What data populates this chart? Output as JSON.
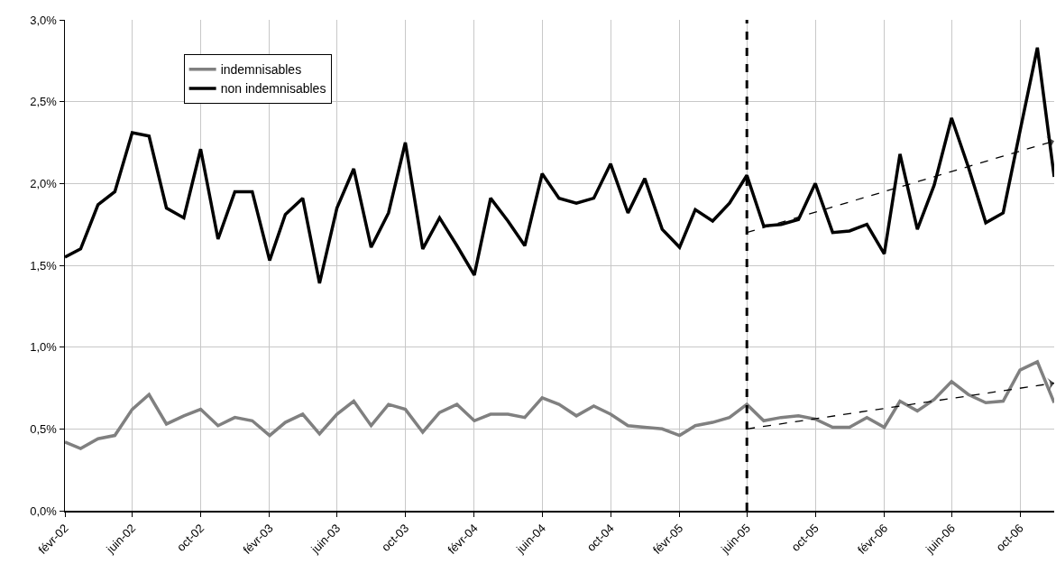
{
  "chart_data": {
    "type": "line",
    "x": [
      "2002-02",
      "2002-03",
      "2002-04",
      "2002-05",
      "2002-06",
      "2002-07",
      "2002-08",
      "2002-09",
      "2002-10",
      "2002-11",
      "2002-12",
      "2003-01",
      "2003-02",
      "2003-03",
      "2003-04",
      "2003-05",
      "2003-06",
      "2003-07",
      "2003-08",
      "2003-09",
      "2003-10",
      "2003-11",
      "2003-12",
      "2004-01",
      "2004-02",
      "2004-03",
      "2004-04",
      "2004-05",
      "2004-06",
      "2004-07",
      "2004-08",
      "2004-09",
      "2004-10",
      "2004-11",
      "2004-12",
      "2005-01",
      "2005-02",
      "2005-03",
      "2005-04",
      "2005-05",
      "2005-06",
      "2005-07",
      "2005-08",
      "2005-09",
      "2005-10",
      "2005-11",
      "2005-12",
      "2006-01",
      "2006-02",
      "2006-03",
      "2006-04",
      "2006-05",
      "2006-06",
      "2006-07",
      "2006-08",
      "2006-09",
      "2006-10",
      "2006-11",
      "2006-12"
    ],
    "series": [
      {
        "name": "indemnisables",
        "color": "#808080",
        "values": [
          0.42,
          0.38,
          0.44,
          0.46,
          0.62,
          0.71,
          0.53,
          0.58,
          0.62,
          0.52,
          0.57,
          0.55,
          0.46,
          0.54,
          0.59,
          0.47,
          0.59,
          0.67,
          0.52,
          0.65,
          0.62,
          0.48,
          0.6,
          0.65,
          0.55,
          0.59,
          0.59,
          0.57,
          0.69,
          0.65,
          0.58,
          0.64,
          0.59,
          0.52,
          0.51,
          0.5,
          0.46,
          0.52,
          0.54,
          0.57,
          0.65,
          0.55,
          0.57,
          0.58,
          0.56,
          0.51,
          0.51,
          0.57,
          0.51,
          0.67,
          0.61,
          0.68,
          0.79,
          0.71,
          0.66,
          0.67,
          0.86,
          0.91,
          0.66
        ]
      },
      {
        "name": "non indemnisables",
        "color": "#000000",
        "values": [
          1.55,
          1.6,
          1.87,
          1.95,
          2.31,
          2.29,
          1.85,
          1.79,
          2.21,
          1.66,
          1.95,
          1.95,
          1.53,
          1.81,
          1.91,
          1.39,
          1.85,
          2.09,
          1.61,
          1.82,
          2.25,
          1.6,
          1.79,
          1.62,
          1.44,
          1.91,
          1.77,
          1.62,
          2.06,
          1.91,
          1.88,
          1.91,
          2.12,
          1.82,
          2.03,
          1.72,
          1.61,
          1.84,
          1.77,
          1.88,
          2.05,
          1.74,
          1.75,
          1.78,
          2.0,
          1.7,
          1.71,
          1.75,
          1.57,
          2.18,
          1.72,
          1.99,
          2.4,
          2.1,
          1.76,
          1.82,
          2.32,
          2.83,
          2.04
        ]
      },
      {
        "type": "line",
        "x": [
          "2005-06",
          "2006-12"
        ],
        "values": [
          0.5,
          0.78
        ],
        "color": "#000000",
        "line_style": "dashed"
      },
      {
        "type": "line",
        "x": [
          "2005-06",
          "2006-12"
        ],
        "values": [
          1.7,
          2.26
        ],
        "color": "#000000",
        "line_style": "dashed"
      }
    ],
    "xlim": [
      "2002-02",
      "2006-12"
    ],
    "xticks": [
      {
        "value": "2002-02",
        "label": "févr-02"
      },
      {
        "value": "2002-06",
        "label": "juin-02"
      },
      {
        "value": "2002-10",
        "label": "oct-02"
      },
      {
        "value": "2003-02",
        "label": "févr-03"
      },
      {
        "value": "2003-06",
        "label": "juin-03"
      },
      {
        "value": "2003-10",
        "label": "oct-03"
      },
      {
        "value": "2004-02",
        "label": "févr-04"
      },
      {
        "value": "2004-06",
        "label": "juin-04"
      },
      {
        "value": "2004-10",
        "label": "oct-04"
      },
      {
        "value": "2005-02",
        "label": "févr-05"
      },
      {
        "value": "2005-06",
        "label": "juin-05"
      },
      {
        "value": "2005-10",
        "label": "oct-05"
      },
      {
        "value": "2006-02",
        "label": "févr-06"
      },
      {
        "value": "2006-06",
        "label": "juin-06"
      },
      {
        "value": "2006-10",
        "label": "oct-06"
      }
    ],
    "ylim": [
      0,
      3
    ],
    "yticks": [
      {
        "value": 0,
        "label": "0,0%"
      },
      {
        "value": 0.5,
        "label": "0,5%"
      },
      {
        "value": 1,
        "label": "1,0%"
      },
      {
        "value": 1.5,
        "label": "1,5%"
      },
      {
        "value": 2,
        "label": "2,0%"
      },
      {
        "value": 2.5,
        "label": "2,5%"
      },
      {
        "value": 3,
        "label": "3,0%"
      }
    ],
    "ref_lines": [
      {
        "axis": "x",
        "value": "2005-06",
        "color": "#000000",
        "line_style": "dashed"
      }
    ],
    "grid": true,
    "legend": "top left",
    "line_style": "solid",
    "marker": "none"
  }
}
